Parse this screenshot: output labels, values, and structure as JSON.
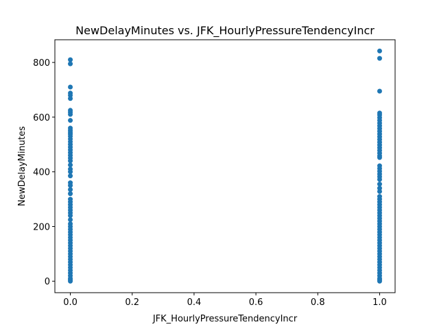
{
  "chart_data": {
    "type": "scatter",
    "title": "NewDelayMinutes vs. JFK_HourlyPressureTendencyIncr",
    "x_label": "JFK_HourlyPressureTendencyIncr",
    "y_label": "NewDelayMinutes",
    "color": "#1f77b4",
    "x": [
      0,
      0,
      0,
      0,
      0,
      0,
      0,
      0,
      0,
      0,
      0,
      0,
      0,
      0,
      0,
      0,
      0,
      0,
      0,
      0,
      0,
      0,
      0,
      0,
      0,
      0,
      0,
      0,
      0,
      0,
      0,
      0,
      0,
      0,
      0,
      0,
      0,
      0,
      0,
      0,
      0,
      0,
      0,
      0,
      0,
      0,
      0,
      0,
      0,
      0,
      0,
      0,
      0,
      0,
      0,
      0,
      0,
      0,
      0,
      0,
      0,
      0,
      0,
      1,
      1,
      1,
      1,
      1,
      1,
      1,
      1,
      1,
      1,
      1,
      1,
      1,
      1,
      1,
      1,
      1,
      1,
      1,
      1,
      1,
      1,
      1,
      1,
      1,
      1,
      1,
      1,
      1,
      1,
      1,
      1,
      1,
      1,
      1,
      1,
      1,
      1,
      1,
      1,
      1,
      1,
      1,
      1,
      1,
      1,
      1,
      1,
      1,
      1,
      1,
      1,
      1,
      1,
      1,
      1,
      1,
      1,
      1,
      1,
      1,
      1,
      1
    ],
    "values": [
      810,
      795,
      710,
      688,
      680,
      668,
      625,
      618,
      610,
      588,
      560,
      552,
      545,
      538,
      530,
      520,
      510,
      500,
      490,
      480,
      470,
      460,
      450,
      440,
      425,
      410,
      400,
      385,
      360,
      350,
      335,
      320,
      300,
      290,
      280,
      270,
      260,
      250,
      240,
      225,
      210,
      200,
      190,
      180,
      170,
      160,
      150,
      140,
      130,
      120,
      110,
      100,
      90,
      80,
      70,
      60,
      50,
      40,
      30,
      20,
      10,
      5,
      0,
      842,
      815,
      695,
      615,
      608,
      598,
      588,
      578,
      568,
      558,
      548,
      538,
      528,
      518,
      508,
      498,
      488,
      478,
      468,
      458,
      452,
      422,
      412,
      402,
      392,
      382,
      372,
      355,
      340,
      328,
      310,
      300,
      290,
      280,
      270,
      260,
      250,
      240,
      230,
      220,
      210,
      200,
      190,
      180,
      170,
      160,
      150,
      140,
      130,
      120,
      110,
      100,
      90,
      80,
      70,
      60,
      50,
      40,
      30,
      20,
      10,
      5,
      0
    ],
    "xlim": [
      -0.05,
      1.05
    ],
    "xticks": [
      {
        "value": 0,
        "label": "0.0"
      },
      {
        "value": 0.2,
        "label": "0.2"
      },
      {
        "value": 0.4,
        "label": "0.4"
      },
      {
        "value": 0.6,
        "label": "0.6"
      },
      {
        "value": 0.8,
        "label": "0.8"
      },
      {
        "value": 1,
        "label": "1.0"
      }
    ],
    "ylim": [
      -42,
      883
    ],
    "yticks": [
      0,
      200,
      400,
      600,
      800
    ]
  }
}
